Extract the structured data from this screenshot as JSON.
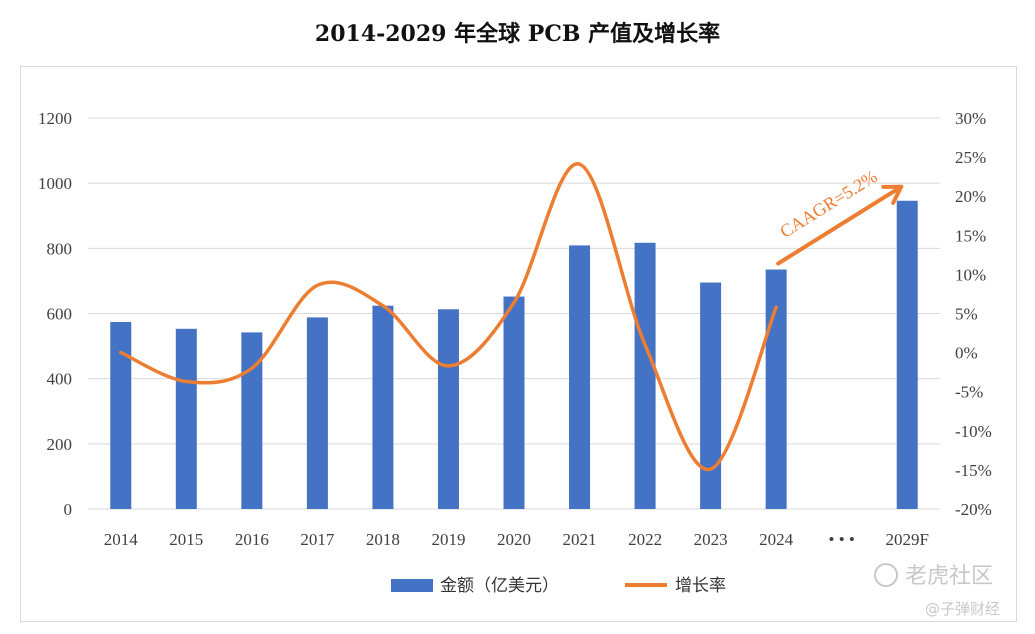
{
  "title": "2014-2029 年全球 PCB 产值及增长率",
  "colors": {
    "bar": "#4472C4",
    "line": "#ED7D31",
    "grid": "#d9d9d9",
    "frame": "#d9d9d9"
  },
  "chart_data": {
    "type": "bar+line",
    "title": "2014-2029 年全球 PCB 产值及增长率",
    "categories": [
      "2014",
      "2015",
      "2016",
      "2017",
      "2018",
      "2019",
      "2020",
      "2021",
      "2022",
      "2023",
      "2024",
      "• • •",
      "2029F"
    ],
    "series": [
      {
        "name": "金额（亿美元）",
        "type": "bar",
        "axis": "left",
        "values": [
          574,
          553,
          542,
          588,
          624,
          613,
          652,
          809,
          817,
          695,
          735,
          null,
          946
        ]
      },
      {
        "name": "增长率",
        "type": "line",
        "smooth": true,
        "axis": "right",
        "values": [
          0.023,
          -3.7,
          -2.0,
          8.6,
          6.0,
          -1.7,
          6.4,
          24.1,
          1.0,
          -14.9,
          5.8,
          null,
          null
        ]
      }
    ],
    "y_left": {
      "ylim": [
        0,
        1200
      ],
      "ticks": [
        "0",
        "200",
        "400",
        "600",
        "800",
        "1000",
        "1200"
      ]
    },
    "y_right": {
      "ylim": [
        -20,
        30
      ],
      "ticks": [
        "-20%",
        "-15%",
        "-10%",
        "-5%",
        "0%",
        "5%",
        "10%",
        "15%",
        "20%",
        "25%",
        "30%"
      ]
    },
    "grid": true,
    "legend_position": "bottom",
    "annotation": {
      "text": "CAAGR=5.2%",
      "arrow_from": "2024",
      "arrow_to": "2029F"
    }
  },
  "watermark": {
    "brand": "老虎社区",
    "account": "@子弹财经"
  }
}
